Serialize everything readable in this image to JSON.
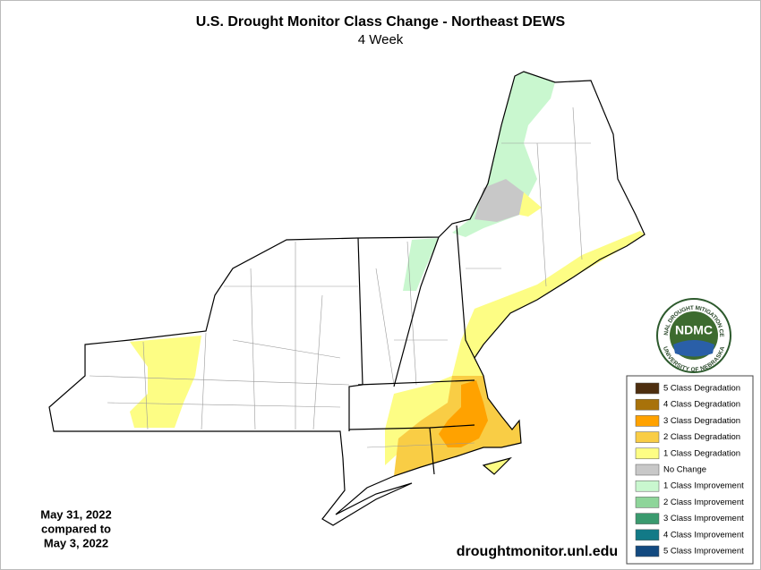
{
  "title": "U.S. Drought Monitor Class Change - Northeast DEWS",
  "subtitle": "4 Week",
  "legend": {
    "items": [
      {
        "label": "5 Class Degradation",
        "color": "#4d2e0f"
      },
      {
        "label": "4 Class Degradation",
        "color": "#a8720a"
      },
      {
        "label": "3 Class Degradation",
        "color": "#ffa200"
      },
      {
        "label": "2 Class Degradation",
        "color": "#f9cd45"
      },
      {
        "label": "1 Class Degradation",
        "color": "#fdfd84"
      },
      {
        "label": "No Change",
        "color": "#c8c8c8"
      },
      {
        "label": "1 Class Improvement",
        "color": "#c9f7cf"
      },
      {
        "label": "2 Class Improvement",
        "color": "#8ed59a"
      },
      {
        "label": "3 Class Improvement",
        "color": "#3a9a6e"
      },
      {
        "label": "4 Class Improvement",
        "color": "#127a87"
      },
      {
        "label": "5 Class Improvement",
        "color": "#134a80"
      }
    ]
  },
  "date_note": {
    "lines": [
      "May 31, 2022",
      "compared to",
      "May 3, 2022"
    ]
  },
  "source": "droughtmonitor.unl.edu",
  "logo": {
    "text": "NDMC",
    "ring_top": "NATIONAL DROUGHT MITIGATION CENTER",
    "ring_bottom": "UNIVERSITY OF NEBRASKA"
  }
}
